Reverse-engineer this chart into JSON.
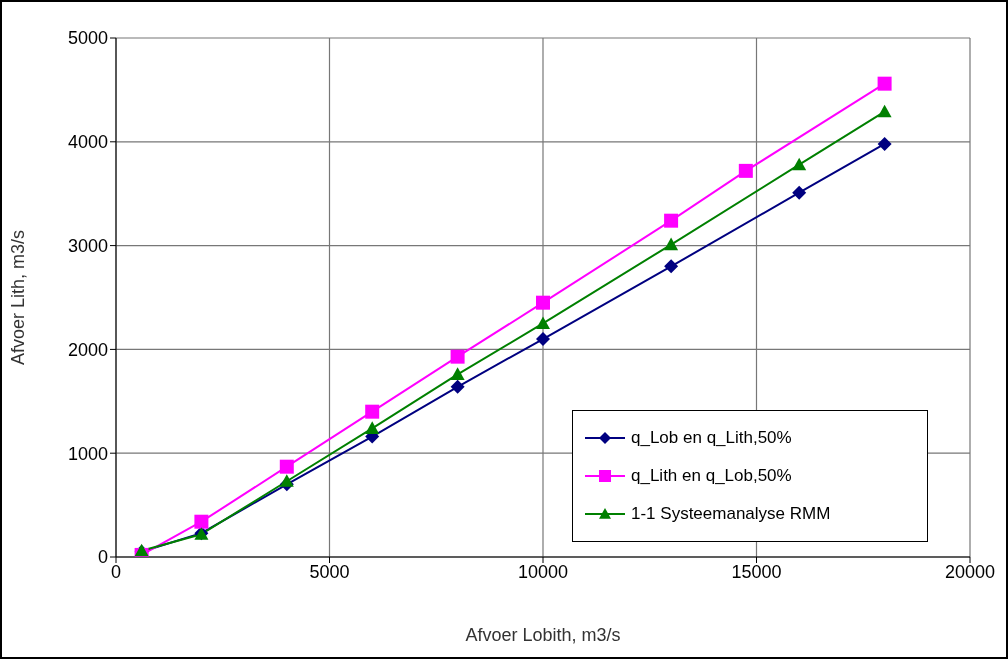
{
  "chart_data": {
    "type": "line",
    "xlabel": "Afvoer Lobith, m3/s",
    "ylabel": "Afvoer Lith, m3/s",
    "xlim": [
      0,
      20000
    ],
    "xticks": [
      0,
      5000,
      10000,
      15000,
      20000
    ],
    "ylim": [
      0,
      5000
    ],
    "yticks": [
      0,
      1000,
      2000,
      3000,
      4000,
      5000
    ],
    "grid": true,
    "legend": "bottom right",
    "line_style": "solid",
    "series": [
      {
        "name": "q_Lob en q_Lith,50%",
        "color": "#000080",
        "marker": "diamond",
        "x": [
          600,
          2000,
          4000,
          6000,
          8000,
          10000,
          13000,
          16000,
          18000
        ],
        "values": [
          50,
          230,
          700,
          1160,
          1640,
          2100,
          2800,
          3510,
          3980
        ]
      },
      {
        "name": "q_Lith en q_Lob,50%",
        "color": "#ff00ff",
        "marker": "square",
        "x": [
          600,
          2000,
          4000,
          6000,
          8000,
          10000,
          13000,
          14750,
          18000
        ],
        "values": [
          20,
          340,
          870,
          1400,
          1930,
          2450,
          3240,
          3720,
          4560
        ]
      },
      {
        "name": "1-1 Systeemanalyse RMM",
        "color": "#008000",
        "marker": "triangle",
        "x": [
          600,
          2000,
          4000,
          6000,
          8000,
          10000,
          13000,
          16000,
          18000
        ],
        "values": [
          60,
          220,
          730,
          1240,
          1760,
          2250,
          3010,
          3780,
          4290
        ]
      }
    ]
  }
}
